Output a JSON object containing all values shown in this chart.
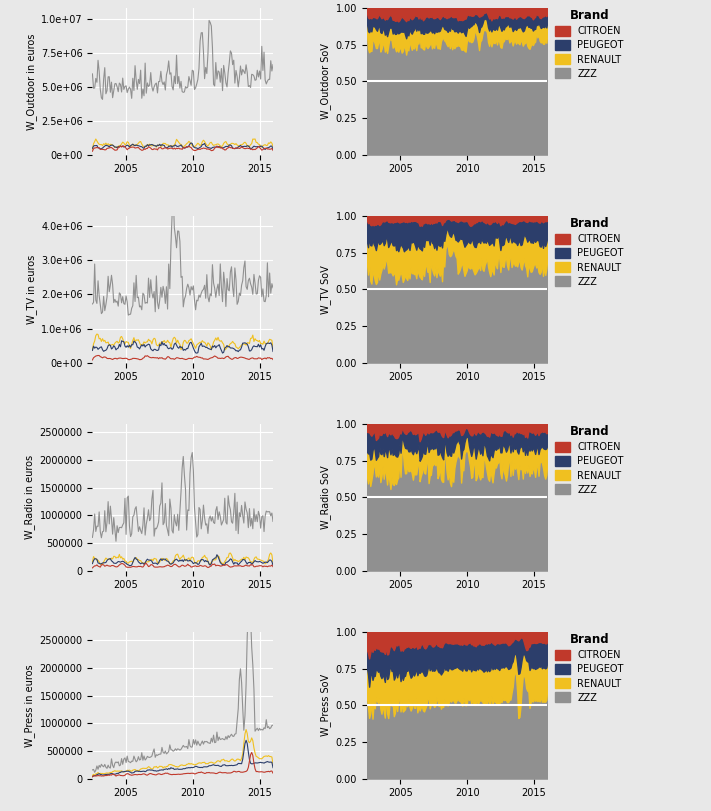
{
  "colors": {
    "CITROEN": "#C0392B",
    "PEUGEOT": "#2C3E6B",
    "RENAULT": "#F0C020",
    "ZZZ": "#909090"
  },
  "row_labels_left": [
    "W_Outdoor in euros",
    "W_TV in euros",
    "W_Radio in euros",
    "W_Press in euros"
  ],
  "row_labels_right": [
    "W_Outdoor SoV",
    "W_TV SoV",
    "W_Radio SoV",
    "W_Press SoV"
  ],
  "year_start": 2002.5,
  "year_end": 2016.0,
  "n_points": 162,
  "background_color": "#E8E8E8",
  "panel_bg": "#E8E8E8",
  "grid_color": "white",
  "hline_y": 0.5,
  "hline_color": "white",
  "hline_lw": 1.5,
  "xticks": [
    2005,
    2010,
    2015
  ],
  "left_yticks_row0": [
    0,
    2500000,
    5000000,
    7500000,
    10000000
  ],
  "left_yticks_row1": [
    0,
    1000000,
    2000000,
    3000000,
    4000000
  ],
  "left_yticks_row2": [
    0,
    500000,
    1000000,
    1500000,
    2000000,
    2500000
  ],
  "left_yticks_row3": [
    0,
    500000,
    1000000,
    1500000,
    2000000,
    2500000
  ],
  "right_yticks": [
    0.0,
    0.25,
    0.5,
    0.75,
    1.0
  ]
}
